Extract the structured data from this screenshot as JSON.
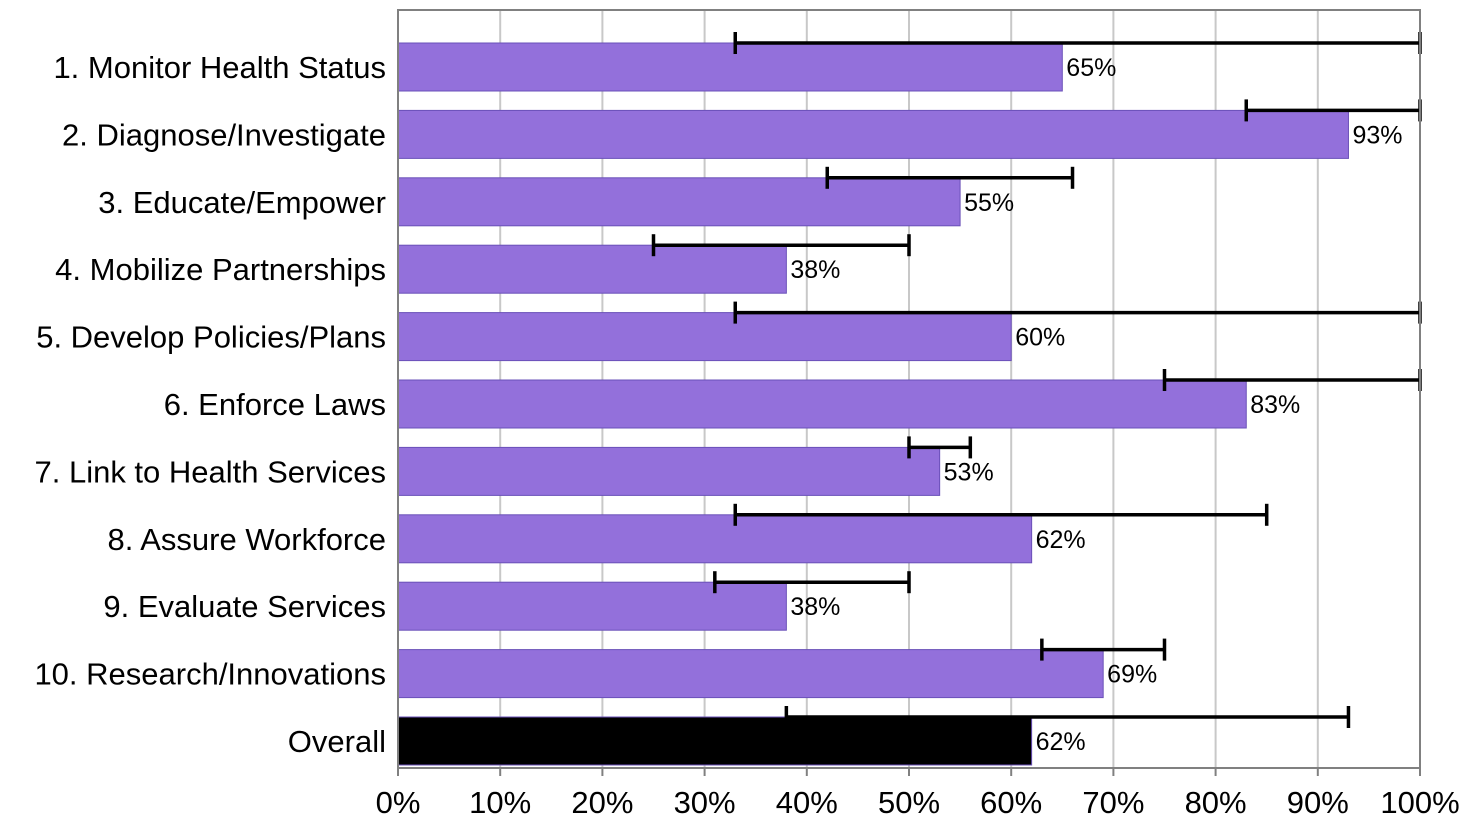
{
  "chart_data": {
    "type": "bar",
    "orientation": "horizontal",
    "categories": [
      "1.  Monitor Health Status",
      "2.  Diagnose/Investigate",
      "3.  Educate/Empower",
      "4.  Mobilize Partnerships",
      "5.  Develop Policies/Plans",
      "6.  Enforce Laws",
      "7.  Link to Health Services",
      "8.  Assure Workforce",
      "9.  Evaluate Services",
      "10.  Research/Innovations",
      "Overall"
    ],
    "values": [
      65,
      93,
      55,
      38,
      60,
      83,
      53,
      62,
      38,
      69,
      62
    ],
    "value_labels": [
      "65%",
      "93%",
      "55%",
      "38%",
      "60%",
      "83%",
      "53%",
      "62%",
      "38%",
      "69%",
      "62%"
    ],
    "error_low": [
      33,
      83,
      42,
      25,
      33,
      75,
      50,
      33,
      31,
      63,
      38
    ],
    "error_high": [
      100,
      100,
      66,
      50,
      100,
      100,
      56,
      85,
      50,
      75,
      93
    ],
    "bar_colors": [
      "#9370db",
      "#9370db",
      "#9370db",
      "#9370db",
      "#9370db",
      "#9370db",
      "#9370db",
      "#9370db",
      "#9370db",
      "#9370db",
      "#000000"
    ],
    "xlim": [
      0,
      100
    ],
    "xticks": [
      0,
      10,
      20,
      30,
      40,
      50,
      60,
      70,
      80,
      90,
      100
    ],
    "xtick_labels": [
      "0%",
      "10%",
      "20%",
      "30%",
      "40%",
      "50%",
      "60%",
      "70%",
      "80%",
      "90%",
      "100%"
    ],
    "title": "",
    "xlabel": "",
    "ylabel": "",
    "grid": "vertical",
    "legend": "none"
  }
}
